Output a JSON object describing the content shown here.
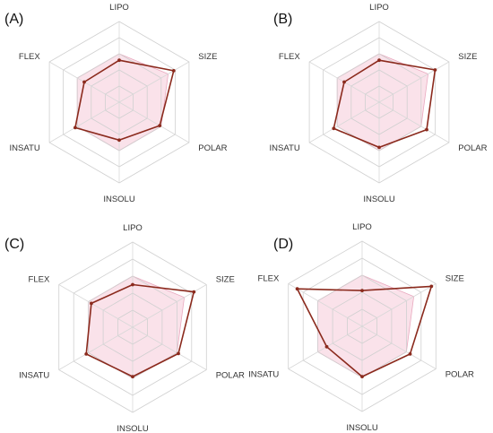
{
  "chart_data": [
    {
      "type": "radar",
      "panel_label": "(A)",
      "axes": [
        "LIPO",
        "SIZE",
        "POLAR",
        "INSOLU",
        "INSATU",
        "FLEX"
      ],
      "scale": [
        0,
        10
      ],
      "rings": 5,
      "optimal_range": {
        "LIPO": 6.0,
        "SIZE": 7.0,
        "POLAR": 6.0,
        "INSOLU": 6.0,
        "INSATU": 6.0,
        "FLEX": 6.0
      },
      "series": [
        {
          "values": [
            5.2,
            7.8,
            5.8,
            4.7,
            6.3,
            5.0
          ]
        }
      ]
    },
    {
      "type": "radar",
      "panel_label": "(B)",
      "axes": [
        "LIPO",
        "SIZE",
        "POLAR",
        "INSOLU",
        "INSATU",
        "FLEX"
      ],
      "scale": [
        0,
        10
      ],
      "rings": 5,
      "optimal_range": {
        "LIPO": 6.0,
        "SIZE": 7.0,
        "POLAR": 6.0,
        "INSOLU": 6.0,
        "INSATU": 6.0,
        "FLEX": 6.0
      },
      "series": [
        {
          "values": [
            5.2,
            8.0,
            6.8,
            5.6,
            6.5,
            5.0
          ]
        }
      ]
    },
    {
      "type": "radar",
      "panel_label": "(C)",
      "axes": [
        "LIPO",
        "SIZE",
        "POLAR",
        "INSOLU",
        "INSATU",
        "FLEX"
      ],
      "scale": [
        0,
        10
      ],
      "rings": 5,
      "optimal_range": {
        "LIPO": 6.0,
        "SIZE": 7.0,
        "POLAR": 6.0,
        "INSOLU": 6.0,
        "INSATU": 6.0,
        "FLEX": 6.0
      },
      "series": [
        {
          "values": [
            5.0,
            8.3,
            6.2,
            5.8,
            6.3,
            5.6
          ]
        }
      ]
    },
    {
      "type": "radar",
      "panel_label": "(D)",
      "axes": [
        "LIPO",
        "SIZE",
        "POLAR",
        "INSOLU",
        "INSATU",
        "FLEX"
      ],
      "scale": [
        0,
        10
      ],
      "rings": 5,
      "optimal_range": {
        "LIPO": 6.0,
        "SIZE": 7.0,
        "POLAR": 6.0,
        "INSOLU": 6.0,
        "INSATU": 6.0,
        "FLEX": 6.0
      },
      "series": [
        {
          "values": [
            4.2,
            9.4,
            6.5,
            5.9,
            4.8,
            8.8
          ]
        }
      ]
    }
  ],
  "colors": {
    "series_line": "#8b2a1d",
    "optimal_zone_fill": "#f5cbd9",
    "grid": "#d0d0d0"
  }
}
